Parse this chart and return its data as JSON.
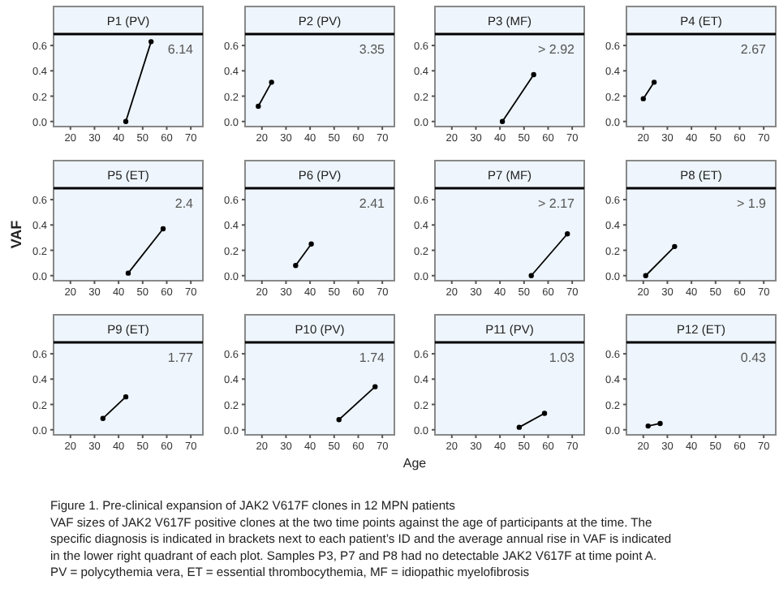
{
  "chart_data": [
    {
      "type": "line",
      "title": "P1 (PV)",
      "x": [
        43,
        53.5
      ],
      "values": [
        0,
        0.63
      ],
      "color": "#000000",
      "marker": "circle",
      "xlim": [
        13,
        75
      ],
      "ylim": [
        -0.04,
        0.69
      ],
      "xticks": [
        20,
        30,
        40,
        50,
        60,
        70
      ],
      "yticks": [
        {
          "value": 0,
          "label": "0.0"
        },
        {
          "value": 0.2,
          "label": "0.2"
        },
        {
          "value": 0.4,
          "label": "0.4"
        },
        {
          "value": 0.6,
          "label": "0.6"
        }
      ],
      "annotations": [
        "6.14"
      ]
    },
    {
      "type": "line",
      "title": "P2 (PV)",
      "x": [
        18.5,
        24
      ],
      "values": [
        0.12,
        0.31
      ],
      "color": "#000000",
      "marker": "circle",
      "xlim": [
        13,
        75
      ],
      "ylim": [
        -0.04,
        0.69
      ],
      "xticks": [
        20,
        30,
        40,
        50,
        60,
        70
      ],
      "yticks": [
        {
          "value": 0,
          "label": "0.0"
        },
        {
          "value": 0.2,
          "label": "0.2"
        },
        {
          "value": 0.4,
          "label": "0.4"
        },
        {
          "value": 0.6,
          "label": "0.6"
        }
      ],
      "annotations": [
        "3.35"
      ]
    },
    {
      "type": "line",
      "title": "P3 (MF)",
      "x": [
        41,
        54
      ],
      "values": [
        0,
        0.37
      ],
      "color": "#000000",
      "marker": "circle",
      "xlim": [
        13,
        75
      ],
      "ylim": [
        -0.04,
        0.69
      ],
      "xticks": [
        20,
        30,
        40,
        50,
        60,
        70
      ],
      "yticks": [
        {
          "value": 0,
          "label": "0.0"
        },
        {
          "value": 0.2,
          "label": "0.2"
        },
        {
          "value": 0.4,
          "label": "0.4"
        },
        {
          "value": 0.6,
          "label": "0.6"
        }
      ],
      "annotations": [
        "> 2.92"
      ]
    },
    {
      "type": "line",
      "title": "P4 (ET)",
      "x": [
        20,
        24.5
      ],
      "values": [
        0.18,
        0.31
      ],
      "color": "#000000",
      "marker": "circle",
      "xlim": [
        13,
        75
      ],
      "ylim": [
        -0.04,
        0.69
      ],
      "xticks": [
        20,
        30,
        40,
        50,
        60,
        70
      ],
      "yticks": [
        {
          "value": 0,
          "label": "0.0"
        },
        {
          "value": 0.2,
          "label": "0.2"
        },
        {
          "value": 0.4,
          "label": "0.4"
        },
        {
          "value": 0.6,
          "label": "0.6"
        }
      ],
      "annotations": [
        "2.67"
      ]
    },
    {
      "type": "line",
      "title": "P5 (ET)",
      "ylabel": "VAF",
      "x": [
        44,
        58.5
      ],
      "values": [
        0.02,
        0.37
      ],
      "color": "#000000",
      "marker": "circle",
      "xlim": [
        13,
        75
      ],
      "ylim": [
        -0.04,
        0.69
      ],
      "xticks": [
        20,
        30,
        40,
        50,
        60,
        70
      ],
      "yticks": [
        {
          "value": 0,
          "label": "0.0"
        },
        {
          "value": 0.2,
          "label": "0.2"
        },
        {
          "value": 0.4,
          "label": "0.4"
        },
        {
          "value": 0.6,
          "label": "0.6"
        }
      ],
      "annotations": [
        "2.4"
      ]
    },
    {
      "type": "line",
      "title": "P6 (PV)",
      "x": [
        34,
        40.5
      ],
      "values": [
        0.08,
        0.25
      ],
      "color": "#000000",
      "marker": "circle",
      "xlim": [
        13,
        75
      ],
      "ylim": [
        -0.04,
        0.69
      ],
      "xticks": [
        20,
        30,
        40,
        50,
        60,
        70
      ],
      "yticks": [
        {
          "value": 0,
          "label": "0.0"
        },
        {
          "value": 0.2,
          "label": "0.2"
        },
        {
          "value": 0.4,
          "label": "0.4"
        },
        {
          "value": 0.6,
          "label": "0.6"
        }
      ],
      "annotations": [
        "2.41"
      ]
    },
    {
      "type": "line",
      "title": "P7 (MF)",
      "x": [
        53,
        68
      ],
      "values": [
        0,
        0.33
      ],
      "color": "#000000",
      "marker": "circle",
      "xlim": [
        13,
        75
      ],
      "ylim": [
        -0.04,
        0.69
      ],
      "xticks": [
        20,
        30,
        40,
        50,
        60,
        70
      ],
      "yticks": [
        {
          "value": 0,
          "label": "0.0"
        },
        {
          "value": 0.2,
          "label": "0.2"
        },
        {
          "value": 0.4,
          "label": "0.4"
        },
        {
          "value": 0.6,
          "label": "0.6"
        }
      ],
      "annotations": [
        "> 2.17"
      ]
    },
    {
      "type": "line",
      "title": "P8 (ET)",
      "x": [
        21,
        33
      ],
      "values": [
        0,
        0.23
      ],
      "color": "#000000",
      "marker": "circle",
      "xlim": [
        13,
        75
      ],
      "ylim": [
        -0.04,
        0.69
      ],
      "xticks": [
        20,
        30,
        40,
        50,
        60,
        70
      ],
      "yticks": [
        {
          "value": 0,
          "label": "0.0"
        },
        {
          "value": 0.2,
          "label": "0.2"
        },
        {
          "value": 0.4,
          "label": "0.4"
        },
        {
          "value": 0.6,
          "label": "0.6"
        }
      ],
      "annotations": [
        "> 1.9"
      ]
    },
    {
      "type": "line",
      "title": "P9 (ET)",
      "x": [
        33.5,
        43
      ],
      "values": [
        0.09,
        0.26
      ],
      "color": "#000000",
      "marker": "circle",
      "xlim": [
        13,
        75
      ],
      "ylim": [
        -0.04,
        0.69
      ],
      "xticks": [
        20,
        30,
        40,
        50,
        60,
        70
      ],
      "yticks": [
        {
          "value": 0,
          "label": "0.0"
        },
        {
          "value": 0.2,
          "label": "0.2"
        },
        {
          "value": 0.4,
          "label": "0.4"
        },
        {
          "value": 0.6,
          "label": "0.6"
        }
      ],
      "annotations": [
        "1.77"
      ]
    },
    {
      "type": "line",
      "title": "P10 (PV)",
      "xlabel": "Age",
      "x": [
        52,
        67
      ],
      "values": [
        0.08,
        0.34
      ],
      "color": "#000000",
      "marker": "circle",
      "xlim": [
        13,
        75
      ],
      "ylim": [
        -0.04,
        0.69
      ],
      "xticks": [
        20,
        30,
        40,
        50,
        60,
        70
      ],
      "yticks": [
        {
          "value": 0,
          "label": "0.0"
        },
        {
          "value": 0.2,
          "label": "0.2"
        },
        {
          "value": 0.4,
          "label": "0.4"
        },
        {
          "value": 0.6,
          "label": "0.6"
        }
      ],
      "annotations": [
        "1.74"
      ]
    },
    {
      "type": "line",
      "title": "P11 (PV)",
      "x": [
        48,
        58.5
      ],
      "values": [
        0.02,
        0.13
      ],
      "color": "#000000",
      "marker": "circle",
      "xlim": [
        13,
        75
      ],
      "ylim": [
        -0.04,
        0.69
      ],
      "xticks": [
        20,
        30,
        40,
        50,
        60,
        70
      ],
      "yticks": [
        {
          "value": 0,
          "label": "0.0"
        },
        {
          "value": 0.2,
          "label": "0.2"
        },
        {
          "value": 0.4,
          "label": "0.4"
        },
        {
          "value": 0.6,
          "label": "0.6"
        }
      ],
      "annotations": [
        "1.03"
      ]
    },
    {
      "type": "line",
      "title": "P12 (ET)",
      "x": [
        22,
        27
      ],
      "values": [
        0.03,
        0.05
      ],
      "color": "#000000",
      "marker": "circle",
      "xlim": [
        13,
        75
      ],
      "ylim": [
        -0.04,
        0.69
      ],
      "xticks": [
        20,
        30,
        40,
        50,
        60,
        70
      ],
      "yticks": [
        {
          "value": 0,
          "label": "0.0"
        },
        {
          "value": 0.2,
          "label": "0.2"
        },
        {
          "value": 0.4,
          "label": "0.4"
        },
        {
          "value": 0.6,
          "label": "0.6"
        }
      ],
      "annotations": [
        "0.43"
      ]
    },
    {
      "type": "other",
      "title": "Figure 1. Pre-clinical expansion of JAK2 V617F clones in 12 MPN patients",
      "annotations": [
        "VAF sizes of JAK2 V617F positive clones at the two time points against the age of participants at the time. The",
        "specific diagnosis is indicated in brackets next to each patient’s ID and the average annual rise in VAF is indicated",
        "in the lower right quadrant of each plot. Samples P3, P7 and P8 had no detectable JAK2 V617F at time point A.",
        "PV = polycythemia vera, ET = essential thrombocythemia, MF = idiopathic myelofibrosis"
      ]
    }
  ]
}
